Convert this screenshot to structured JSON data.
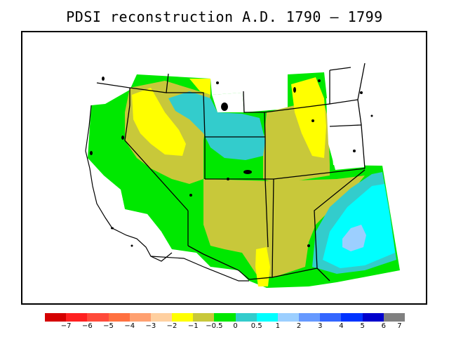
{
  "title": "PDSI reconstruction A.D. 1790 – 1799",
  "legend": {
    "colors": [
      "#d40000",
      "#ff2020",
      "#ff4a3a",
      "#ff7040",
      "#ffa070",
      "#ffd0a0",
      "#ffff00",
      "#c8c83a",
      "#00e800",
      "#33cccc",
      "#00ffff",
      "#9ccfff",
      "#6699ff",
      "#3366ff",
      "#0033ff",
      "#0000cc",
      "#808080"
    ],
    "labels": [
      "−7",
      "−6",
      "−5",
      "−4",
      "−3",
      "−2",
      "−1",
      "−0.5",
      "0",
      "0.5",
      "1",
      "2",
      "3",
      "4",
      "5",
      "6",
      "7"
    ]
  }
}
